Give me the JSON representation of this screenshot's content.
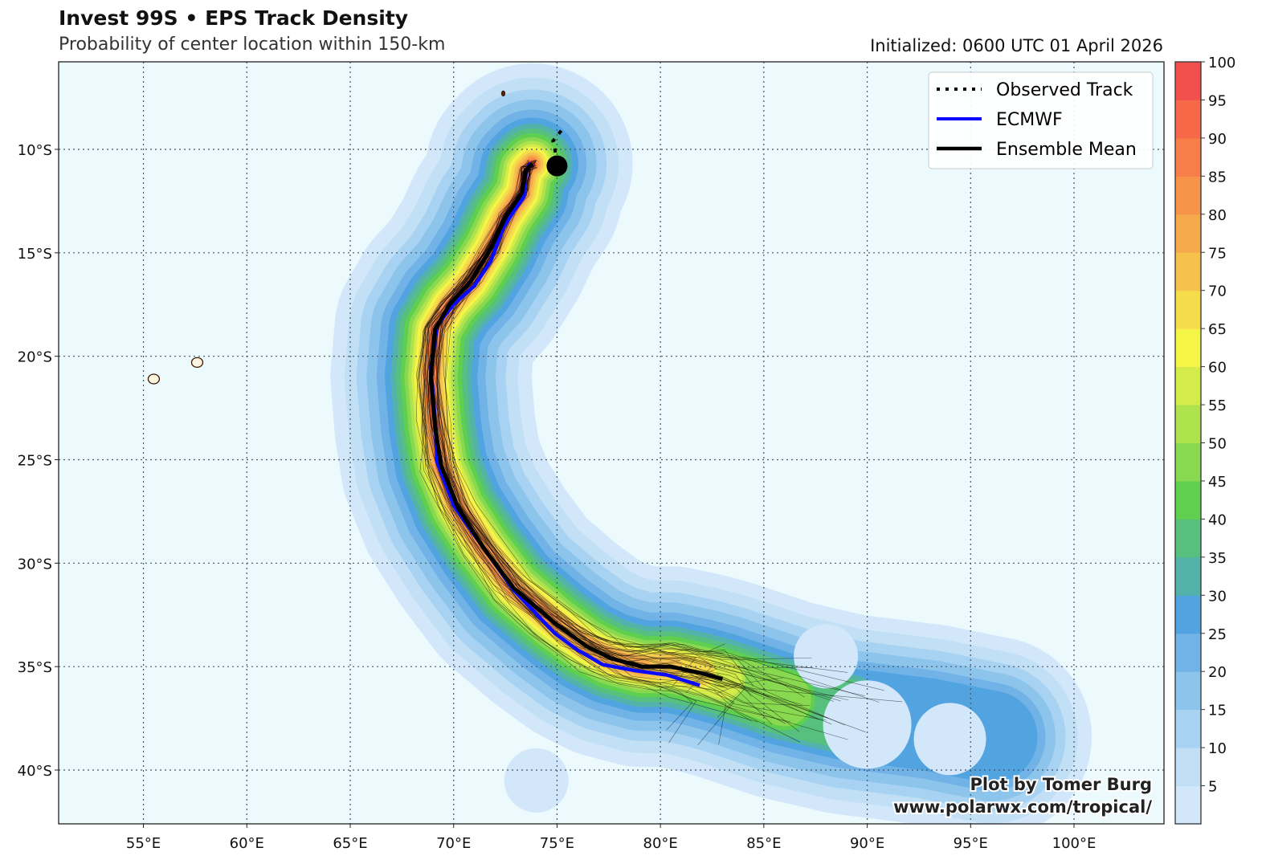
{
  "header": {
    "title": "Invest 99S • EPS Track Density",
    "subtitle": "Probability of center location within 150-km",
    "initialized": "Initialized: 0600 UTC 01 April 2026"
  },
  "credit": {
    "line1": "Plot by Tomer Burg",
    "line2": "www.polarwx.com/tropical/"
  },
  "chart_data": {
    "type": "map-track-density",
    "lon_range": [
      50.9,
      104.35
    ],
    "lat_range_south": [
      5.77,
      42.6
    ],
    "x_ticks": [
      "55°E",
      "60°E",
      "65°E",
      "70°E",
      "75°E",
      "80°E",
      "85°E",
      "90°E",
      "95°E",
      "100°E"
    ],
    "x_tick_values": [
      55,
      60,
      65,
      70,
      75,
      80,
      85,
      90,
      95,
      100
    ],
    "y_ticks": [
      "10°S",
      "15°S",
      "20°S",
      "25°S",
      "30°S",
      "35°S",
      "40°S"
    ],
    "y_tick_values": [
      10,
      15,
      20,
      25,
      30,
      35,
      40
    ],
    "grid": true,
    "legend": {
      "placement": "top-right",
      "entries": [
        "Observed Track",
        "ECMWF",
        "Ensemble Mean"
      ]
    },
    "colorbar": {
      "levels": [
        0,
        5,
        10,
        15,
        20,
        25,
        30,
        35,
        40,
        45,
        50,
        55,
        60,
        65,
        70,
        75,
        80,
        85,
        90,
        95,
        100
      ],
      "labels": [
        "5",
        "10",
        "15",
        "20",
        "25",
        "30",
        "35",
        "40",
        "45",
        "50",
        "55",
        "60",
        "65",
        "70",
        "75",
        "80",
        "85",
        "90",
        "95",
        "100"
      ],
      "colors": [
        "#d2e7f9",
        "#c1dff5",
        "#a8d2f1",
        "#8dc4ec",
        "#71b3e7",
        "#52a4e0",
        "#53b3aa",
        "#57c07f",
        "#5fcf4f",
        "#89d950",
        "#aee34d",
        "#d4ec4a",
        "#f5f548",
        "#f5dc4b",
        "#f6c24e",
        "#f6aa4c",
        "#f7944a",
        "#f77d49",
        "#f66848",
        "#f2504c"
      ]
    },
    "ensemble_mean": [
      [
        73.8,
        10.7
      ],
      [
        73.5,
        11.0
      ],
      [
        73.3,
        12.1
      ],
      [
        72.5,
        13.3
      ],
      [
        71.8,
        14.8
      ],
      [
        70.8,
        16.4
      ],
      [
        69.8,
        17.5
      ],
      [
        69.1,
        18.7
      ],
      [
        68.9,
        21.0
      ],
      [
        69.1,
        23.4
      ],
      [
        69.4,
        25.3
      ],
      [
        70.2,
        27.3
      ],
      [
        71.4,
        29.2
      ],
      [
        72.9,
        31.2
      ],
      [
        74.9,
        32.9
      ],
      [
        76.4,
        34.0
      ],
      [
        77.6,
        34.6
      ],
      [
        79.1,
        35.0
      ],
      [
        80.5,
        35.0
      ],
      [
        81.9,
        35.3
      ],
      [
        83.0,
        35.6
      ]
    ],
    "ecmwf": [
      [
        73.7,
        10.66
      ],
      [
        73.5,
        11.1
      ],
      [
        73.4,
        12.3
      ],
      [
        72.9,
        13.0
      ],
      [
        72.4,
        13.8
      ],
      [
        71.8,
        15.4
      ],
      [
        71.0,
        16.6
      ],
      [
        70.0,
        17.5
      ],
      [
        69.2,
        18.5
      ],
      [
        68.9,
        20.6
      ],
      [
        69.1,
        23.0
      ],
      [
        69.2,
        25.1
      ],
      [
        70.0,
        27.2
      ],
      [
        71.4,
        29.2
      ],
      [
        72.9,
        31.3
      ],
      [
        74.9,
        33.4
      ],
      [
        76.0,
        34.2
      ],
      [
        77.2,
        34.9
      ],
      [
        78.8,
        35.2
      ],
      [
        80.3,
        35.4
      ],
      [
        81.9,
        35.9
      ]
    ],
    "observed_track": [
      [
        75.2,
        9.1
      ],
      [
        74.8,
        9.6
      ],
      [
        74.9,
        10.0
      ],
      [
        75.0,
        10.8
      ]
    ],
    "current_position": [
      75.0,
      10.8
    ],
    "islands": [
      [
        57.6,
        20.3
      ],
      [
        55.5,
        21.1
      ],
      [
        72.4,
        7.3
      ]
    ]
  }
}
